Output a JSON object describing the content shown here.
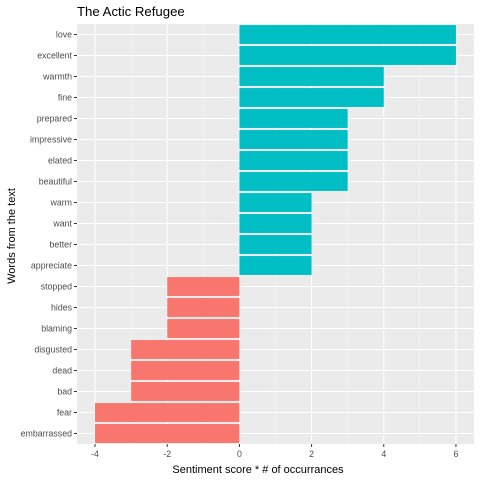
{
  "chart_data": {
    "type": "bar",
    "orientation": "horizontal",
    "title": "The Actic Refugee",
    "xlabel": "Sentiment score * # of occurrances",
    "ylabel": "Words from the text",
    "xlim": [
      -4.5,
      6.5
    ],
    "x_ticks": [
      -4,
      -2,
      0,
      2,
      4,
      6
    ],
    "x_tick_labels": [
      "-4",
      "-2",
      "0",
      "2",
      "4",
      "6"
    ],
    "grid": true,
    "legend": "none",
    "categories": [
      "love",
      "excellent",
      "warmth",
      "fine",
      "prepared",
      "impressive",
      "elated",
      "beautiful",
      "warm",
      "want",
      "better",
      "appreciate",
      "stopped",
      "hides",
      "blaming",
      "disgusted",
      "dead",
      "bad",
      "fear",
      "embarrassed"
    ],
    "values": [
      6,
      6,
      4,
      4,
      3,
      3,
      3,
      3,
      2,
      2,
      2,
      2,
      -2,
      -2,
      -2,
      -3,
      -3,
      -3,
      -4,
      -4
    ],
    "colors": {
      "positive": "#00bfc4",
      "negative": "#f8766d",
      "panel": "#ebebeb",
      "grid_major": "#ffffff",
      "tick_text": "#4d4d4d",
      "axis_tick": "#333333"
    }
  }
}
